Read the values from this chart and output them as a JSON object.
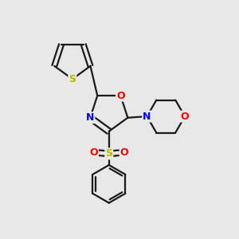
{
  "bg_color": "#e8e8e8",
  "bond_color": "#1a1a1a",
  "bond_width": 1.6,
  "atom_colors": {
    "S": "#b8b800",
    "O": "#ff0000",
    "N": "#0000ff"
  },
  "figsize": [
    3.0,
    3.0
  ],
  "dpi": 100
}
